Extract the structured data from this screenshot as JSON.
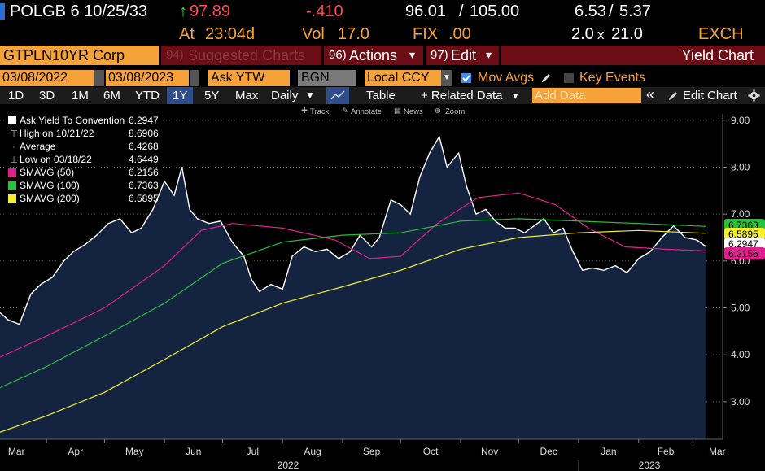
{
  "header": {
    "ticker": "POLGB 6 10/25/33",
    "arrow": "↑",
    "last_price": "97.89",
    "change": "-.410",
    "bid": "96.01",
    "ask": "105.00",
    "yld_bid": "6.53",
    "yld_ask": "5.37",
    "time_label": "At",
    "time": "23:04d",
    "vol_label": "Vol",
    "vol": "17.0",
    "fix_label": "FIX",
    "fix": ".00",
    "size_bid": "2.0",
    "size_x": "x",
    "size_ask": "21.0",
    "exch": "EXCH",
    "sep": "/"
  },
  "toolbar": {
    "security": "GTPLN10YR Corp",
    "suggested_num": "94)",
    "suggested": "Suggested Charts",
    "actions_num": "96)",
    "actions": "Actions",
    "edit_num": "97)",
    "edit": "Edit",
    "caret": "▾",
    "title": "Yield Chart"
  },
  "params": {
    "start_date": "03/08/2022",
    "dash": "-",
    "end_date": "03/08/2023",
    "field": "Ask YTW",
    "source": "BGN",
    "currency": "Local CCY",
    "mov_avgs": "Mov Avgs",
    "key_events": "Key Events"
  },
  "periods": {
    "items": [
      "1D",
      "3D",
      "1M",
      "6M",
      "YTD",
      "1Y",
      "5Y",
      "Max"
    ],
    "selected": "1Y",
    "freq": "Daily",
    "freq_caret": "▼",
    "table": "Table",
    "related": "+ Related Data",
    "related_caret": "▾",
    "add_data_placeholder": "Add Data",
    "back": "«",
    "edit_chart": "Edit Chart"
  },
  "subtools": {
    "track": "Track",
    "annotate": "Annotate",
    "news": "News",
    "zoom": "Zoom"
  },
  "legend": [
    {
      "label": "Ask Yield To Convention",
      "value": "6.2947",
      "color": "#ffffff",
      "marker": "box"
    },
    {
      "label": "High on 10/21/22",
      "value": "8.6906",
      "color": "#bbbbbb",
      "marker": "high"
    },
    {
      "label": "Average",
      "value": "6.4268",
      "color": "#bbbbbb",
      "marker": "avg"
    },
    {
      "label": "Low on 03/18/22",
      "value": "4.6449",
      "color": "#bbbbbb",
      "marker": "low"
    },
    {
      "label": "SMAVG (50)",
      "value": "6.2156",
      "color": "#e0208f",
      "marker": "box"
    },
    {
      "label": "SMAVG (100)",
      "value": "6.7363",
      "color": "#27c13a",
      "marker": "box"
    },
    {
      "label": "SMAVG (200)",
      "value": "6.5895",
      "color": "#f5f02b",
      "marker": "box"
    }
  ],
  "chart_data": {
    "type": "area",
    "ylim": [
      2.2,
      9.1
    ],
    "y_ticks": [
      "9.00",
      "8.00",
      "7.00",
      "6.00",
      "5.00",
      "4.00",
      "3.00"
    ],
    "x_months": [
      "Mar",
      "Apr",
      "May",
      "Jun",
      "Jul",
      "Aug",
      "Sep",
      "Oct",
      "Nov",
      "Dec",
      "Jan",
      "Feb",
      "Mar"
    ],
    "x_years": [
      "2022",
      "2023"
    ],
    "x_range": [
      "2022-03-08",
      "2023-03-08"
    ],
    "series": [
      {
        "name": "Ask Yield To Convention",
        "color": "#ffffff",
        "fill": "#14233f",
        "x": [
          "2022-03-08",
          "2022-03-12",
          "2022-03-18",
          "2022-03-24",
          "2022-03-29",
          "2022-04-04",
          "2022-04-10",
          "2022-04-15",
          "2022-04-21",
          "2022-04-27",
          "2022-05-03",
          "2022-05-09",
          "2022-05-15",
          "2022-05-20",
          "2022-05-26",
          "2022-06-01",
          "2022-06-06",
          "2022-06-10",
          "2022-06-14",
          "2022-06-18",
          "2022-06-24",
          "2022-06-30",
          "2022-07-06",
          "2022-07-12",
          "2022-07-16",
          "2022-07-20",
          "2022-07-26",
          "2022-08-01",
          "2022-08-06",
          "2022-08-12",
          "2022-08-18",
          "2022-08-24",
          "2022-08-30",
          "2022-09-05",
          "2022-09-10",
          "2022-09-16",
          "2022-09-20",
          "2022-09-26",
          "2022-10-01",
          "2022-10-06",
          "2022-10-11",
          "2022-10-16",
          "2022-10-21",
          "2022-10-25",
          "2022-10-31",
          "2022-11-04",
          "2022-11-09",
          "2022-11-14",
          "2022-11-19",
          "2022-11-24",
          "2022-11-29",
          "2022-12-04",
          "2022-12-09",
          "2022-12-14",
          "2022-12-19",
          "2022-12-24",
          "2022-12-29",
          "2023-01-03",
          "2023-01-08",
          "2023-01-14",
          "2023-01-20",
          "2023-01-26",
          "2023-02-01",
          "2023-02-07",
          "2023-02-13",
          "2023-02-19",
          "2023-02-25",
          "2023-03-03",
          "2023-03-08"
        ],
        "y": [
          4.9,
          4.75,
          4.65,
          5.3,
          5.5,
          5.65,
          6.0,
          6.2,
          6.35,
          6.55,
          6.8,
          6.9,
          6.6,
          6.7,
          7.1,
          7.7,
          7.4,
          8.0,
          7.1,
          6.9,
          6.8,
          6.85,
          6.4,
          6.1,
          5.6,
          5.35,
          5.5,
          5.4,
          6.1,
          6.3,
          6.2,
          6.25,
          6.05,
          6.2,
          6.55,
          6.3,
          6.5,
          7.3,
          7.2,
          7.0,
          7.8,
          8.3,
          8.65,
          8.0,
          8.3,
          7.6,
          7.0,
          7.1,
          6.85,
          6.7,
          6.7,
          6.6,
          6.75,
          6.9,
          6.6,
          6.7,
          6.2,
          5.8,
          5.85,
          5.8,
          5.9,
          5.75,
          6.05,
          6.2,
          6.5,
          6.75,
          6.5,
          6.45,
          6.3
        ]
      },
      {
        "name": "SMAVG (50)",
        "color": "#e0208f",
        "x": [
          "2022-03-08",
          "2022-04-01",
          "2022-05-01",
          "2022-06-01",
          "2022-06-20",
          "2022-07-06",
          "2022-08-01",
          "2022-08-28",
          "2022-09-15",
          "2022-10-01",
          "2022-10-20",
          "2022-11-10",
          "2022-12-01",
          "2022-12-20",
          "2023-01-06",
          "2023-01-25",
          "2023-02-15",
          "2023-03-08"
        ],
        "y": [
          3.95,
          4.4,
          5.0,
          5.9,
          6.65,
          6.8,
          6.7,
          6.45,
          6.05,
          6.1,
          6.8,
          7.35,
          7.45,
          7.2,
          6.7,
          6.3,
          6.25,
          6.2156
        ]
      },
      {
        "name": "SMAVG (100)",
        "color": "#27c13a",
        "x": [
          "2022-03-08",
          "2022-04-01",
          "2022-05-01",
          "2022-06-01",
          "2022-07-01",
          "2022-08-01",
          "2022-09-01",
          "2022-10-01",
          "2022-11-01",
          "2022-12-01",
          "2023-01-01",
          "2023-02-01",
          "2023-03-08"
        ],
        "y": [
          3.3,
          3.75,
          4.4,
          5.1,
          5.95,
          6.4,
          6.55,
          6.6,
          6.85,
          6.9,
          6.85,
          6.8,
          6.7363
        ]
      },
      {
        "name": "SMAVG (200)",
        "color": "#f5f02b",
        "x": [
          "2022-03-08",
          "2022-04-01",
          "2022-05-01",
          "2022-06-01",
          "2022-07-01",
          "2022-08-01",
          "2022-09-01",
          "2022-10-01",
          "2022-11-01",
          "2022-12-01",
          "2023-01-01",
          "2023-02-01",
          "2023-03-08"
        ],
        "y": [
          2.35,
          2.7,
          3.2,
          3.9,
          4.6,
          5.1,
          5.45,
          5.8,
          6.25,
          6.5,
          6.6,
          6.65,
          6.5895
        ]
      }
    ],
    "last_labels": [
      {
        "value": "6.7363",
        "color": "#27c13a"
      },
      {
        "value": "6.5895",
        "color": "#f5f02b"
      },
      {
        "value": "6.2947",
        "color": "#ffffff"
      },
      {
        "value": "6.2156",
        "color": "#e0208f"
      }
    ]
  }
}
